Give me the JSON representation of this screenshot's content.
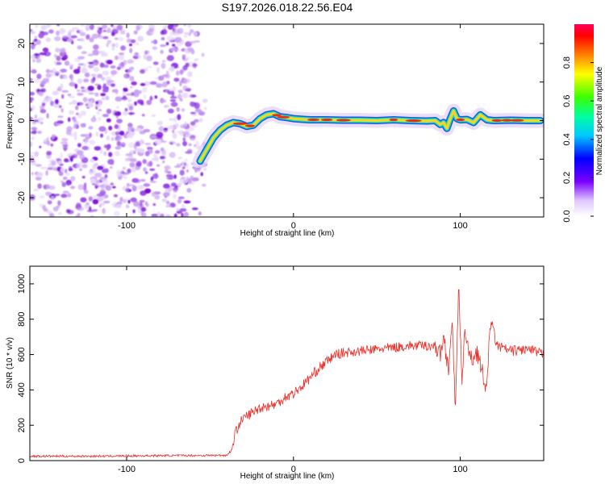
{
  "figure_title": "S197.2026.018.22.56.E04",
  "colors": {
    "trace": "#e8302a",
    "scatter": [
      "#7a12d8",
      "#a25ce8",
      "#c9a2f2",
      "#e6d6fa"
    ],
    "track_core": "#ee2a1a",
    "track_mid": "#ffd21e",
    "track_outer": "#18e8b8",
    "track_edge": "#1058f0"
  },
  "chart_data": [
    {
      "type": "heatmap",
      "title": "S197.2026.018.22.56.E04",
      "xlabel": "Height of straight line (km)",
      "ylabel": "Frequency (Hz)",
      "xlim": [
        -158,
        150
      ],
      "ylim": [
        -25,
        25
      ],
      "xticks": [
        -100,
        0,
        100
      ],
      "yticks": [
        -20,
        -10,
        0,
        10,
        20
      ],
      "xtick_labels": [
        "-100",
        "0",
        "100"
      ],
      "ytick_labels": [
        "-20",
        "-10",
        "0",
        "10",
        "20"
      ],
      "noise_region_x": [
        -158,
        -50
      ],
      "track_x": [
        -56,
        -52,
        -48,
        -44,
        -40,
        -36,
        -32,
        -28,
        -24,
        -20,
        -16,
        -12,
        -8,
        -4,
        0,
        10,
        20,
        30,
        40,
        50,
        60,
        70,
        80,
        85,
        88,
        90,
        92,
        94,
        96,
        98,
        100,
        104,
        108,
        112,
        116,
        120,
        130,
        140,
        148
      ],
      "track_freq": [
        -10.5,
        -7.5,
        -4.5,
        -2.5,
        -1.2,
        -0.5,
        -0.8,
        -1.5,
        -1.2,
        0.5,
        1.5,
        1.8,
        1.0,
        0.8,
        0.5,
        0.2,
        0.2,
        0.1,
        0.1,
        0.0,
        0.2,
        0.0,
        -0.1,
        0.0,
        -1.0,
        -0.5,
        -2.0,
        0.5,
        2.5,
        0.5,
        0.2,
        0.3,
        -0.5,
        1.5,
        0.2,
        0.0,
        0.1,
        0.0,
        0.0
      ],
      "colorbar": {
        "label": "Normalized spectral amplitude",
        "range": [
          0,
          1
        ],
        "ticks": [
          0.0,
          0.2,
          0.4,
          0.6,
          0.8
        ],
        "tick_labels": [
          "0.0",
          "0.2",
          "0.4",
          "0.6",
          "0.8"
        ],
        "colormap": "rainbow"
      }
    },
    {
      "type": "line",
      "xlabel": "Height of straight line (km)",
      "ylabel": "SNR (10 * v/v)",
      "xlim": [
        -158,
        150
      ],
      "ylim": [
        0,
        1100
      ],
      "xticks": [
        -100,
        0,
        100
      ],
      "yticks": [
        0,
        200,
        400,
        600,
        800,
        1000
      ],
      "xtick_labels": [
        "-100",
        "0",
        "100"
      ],
      "ytick_labels": [
        "0",
        "200",
        "400",
        "600",
        "800",
        "1000"
      ],
      "series": [
        {
          "name": "SNR",
          "x": [
            -158,
            -120,
            -80,
            -40,
            -37,
            -35,
            -33,
            -30,
            -25,
            -20,
            -15,
            -10,
            -5,
            0,
            5,
            10,
            15,
            20,
            25,
            30,
            40,
            50,
            60,
            70,
            80,
            85,
            88,
            90,
            93,
            95,
            97,
            99,
            101,
            103,
            106,
            110,
            113,
            116,
            118,
            122,
            130,
            140,
            150
          ],
          "y": [
            25,
            25,
            28,
            30,
            60,
            150,
            200,
            240,
            270,
            300,
            310,
            320,
            360,
            380,
            420,
            470,
            520,
            560,
            600,
            610,
            620,
            630,
            640,
            650,
            650,
            650,
            600,
            700,
            520,
            800,
            300,
            1000,
            430,
            750,
            560,
            620,
            500,
            400,
            800,
            650,
            620,
            630,
            600
          ]
        }
      ]
    }
  ]
}
